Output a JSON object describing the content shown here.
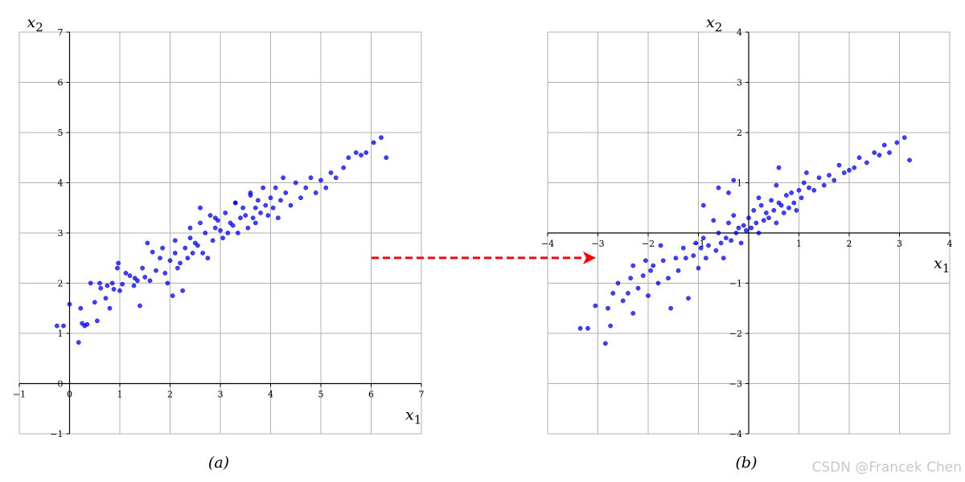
{
  "chart_data": [
    {
      "type": "scatter",
      "xlabel": "x",
      "xlabel_sub": "1",
      "ylabel": "x",
      "ylabel_sub": "2",
      "xlim": [
        -1,
        7
      ],
      "ylim": [
        -1,
        7
      ],
      "xticks": [
        -1,
        0,
        1,
        2,
        3,
        4,
        5,
        6,
        7
      ],
      "yticks": [
        -1,
        0,
        1,
        2,
        3,
        4,
        5,
        6,
        7
      ],
      "grid": true,
      "spines_through_origin": true,
      "caption": "(a)",
      "marker_color": "#0000ff",
      "series": [
        {
          "x": [
            -0.25,
            -0.12,
            0.0,
            0.18,
            0.22,
            0.25,
            0.3,
            0.35,
            0.42,
            0.5,
            0.55,
            0.6,
            0.62,
            0.72,
            0.8,
            0.85,
            0.88,
            0.95,
            0.97,
            1.05,
            1.12,
            1.2,
            1.28,
            1.35,
            1.4,
            1.45,
            1.5,
            1.55,
            1.6,
            1.65,
            1.72,
            1.8,
            1.85,
            1.9,
            1.95,
            2.0,
            2.05,
            2.1,
            2.15,
            2.2,
            2.25,
            2.3,
            2.35,
            2.4,
            2.45,
            2.5,
            2.55,
            2.6,
            2.65,
            2.7,
            2.75,
            2.8,
            2.85,
            2.9,
            2.95,
            3.0,
            3.05,
            3.1,
            3.15,
            3.2,
            3.25,
            3.3,
            3.35,
            3.4,
            3.45,
            3.5,
            3.55,
            3.6,
            3.65,
            3.7,
            3.75,
            3.8,
            3.85,
            3.9,
            3.95,
            4.0,
            4.05,
            4.1,
            4.15,
            4.2,
            4.3,
            4.4,
            4.5,
            4.6,
            4.7,
            4.8,
            4.9,
            5.0,
            5.1,
            5.2,
            5.3,
            5.45,
            5.55,
            5.7,
            5.8,
            5.9,
            6.05,
            6.2,
            6.3,
            2.1,
            2.4,
            2.9,
            3.3,
            3.7,
            4.25,
            1.0,
            1.3,
            0.75,
            2.6,
            3.6
          ],
          "y": [
            1.15,
            1.15,
            1.58,
            0.82,
            1.5,
            1.2,
            1.15,
            1.18,
            2.0,
            1.62,
            1.25,
            2.0,
            1.9,
            1.7,
            1.5,
            2.0,
            1.88,
            2.3,
            2.4,
            1.98,
            2.2,
            2.15,
            1.95,
            2.05,
            1.55,
            2.3,
            2.12,
            2.8,
            2.05,
            2.62,
            2.25,
            2.5,
            2.7,
            2.2,
            2.0,
            2.45,
            1.75,
            2.6,
            2.3,
            2.4,
            1.85,
            2.7,
            2.5,
            2.9,
            2.6,
            2.8,
            2.75,
            3.2,
            2.6,
            3.0,
            2.5,
            3.35,
            2.85,
            3.1,
            3.25,
            3.05,
            2.9,
            3.4,
            3.0,
            3.2,
            3.15,
            3.6,
            3.0,
            3.3,
            3.5,
            3.35,
            3.1,
            3.75,
            3.3,
            3.5,
            3.65,
            3.4,
            3.9,
            3.55,
            3.35,
            3.7,
            3.5,
            3.9,
            3.3,
            3.65,
            3.8,
            3.55,
            4.0,
            3.7,
            3.9,
            4.1,
            3.8,
            4.05,
            3.9,
            4.2,
            4.1,
            4.3,
            4.5,
            4.6,
            4.55,
            4.6,
            4.8,
            4.9,
            4.5,
            2.85,
            3.1,
            3.3,
            3.6,
            3.2,
            4.1,
            1.85,
            2.1,
            1.95,
            3.5,
            3.8
          ]
        }
      ]
    },
    {
      "type": "scatter",
      "xlabel": "x",
      "xlabel_sub": "1",
      "ylabel": "x",
      "ylabel_sub": "2",
      "xlim": [
        -4,
        4
      ],
      "ylim": [
        -4,
        4
      ],
      "xticks": [
        -4,
        -3,
        -2,
        -1,
        0,
        1,
        2,
        3,
        4
      ],
      "yticks": [
        -4,
        -3,
        -2,
        -1,
        0,
        1,
        2,
        3,
        4
      ],
      "grid": true,
      "spines_through_origin": true,
      "caption": "(b)",
      "marker_color": "#0000ff",
      "series": [
        {
          "x": [
            -3.35,
            -3.2,
            -3.05,
            -2.85,
            -2.8,
            -2.75,
            -2.7,
            -2.6,
            -2.5,
            -2.4,
            -2.35,
            -2.3,
            -2.2,
            -2.1,
            -2.0,
            -1.95,
            -1.9,
            -1.8,
            -1.7,
            -1.6,
            -1.55,
            -1.45,
            -1.4,
            -1.3,
            -1.25,
            -1.2,
            -1.1,
            -1.05,
            -1.0,
            -0.95,
            -0.9,
            -0.85,
            -0.8,
            -0.7,
            -0.65,
            -0.6,
            -0.55,
            -0.5,
            -0.45,
            -0.4,
            -0.35,
            -0.3,
            -0.25,
            -0.2,
            -0.15,
            -0.1,
            -0.05,
            0.0,
            0.05,
            0.1,
            0.15,
            0.2,
            0.25,
            0.3,
            0.35,
            0.4,
            0.45,
            0.5,
            0.55,
            0.6,
            0.65,
            0.7,
            0.75,
            0.8,
            0.85,
            0.9,
            0.95,
            1.0,
            1.05,
            1.1,
            1.2,
            1.3,
            1.4,
            1.5,
            1.6,
            1.7,
            1.8,
            1.9,
            2.0,
            2.1,
            2.2,
            2.35,
            2.5,
            2.6,
            2.7,
            2.8,
            2.95,
            3.1,
            3.2,
            -0.9,
            -0.6,
            -0.3,
            0.2,
            0.55,
            1.15,
            -2.05,
            -1.75,
            -2.3,
            -0.4,
            0.6
          ],
          "y": [
            -1.9,
            -1.9,
            -1.45,
            -2.2,
            -1.5,
            -1.85,
            -1.2,
            -1.0,
            -1.35,
            -1.2,
            -0.9,
            -1.6,
            -1.1,
            -0.85,
            -1.25,
            -0.75,
            -0.65,
            -1.0,
            -0.55,
            -0.9,
            -1.5,
            -0.5,
            -0.75,
            -0.3,
            -0.5,
            -1.3,
            -0.45,
            -0.2,
            -0.7,
            -0.3,
            -0.1,
            -0.5,
            -0.25,
            0.25,
            -0.35,
            0.0,
            -0.2,
            -0.5,
            -0.1,
            0.2,
            -0.15,
            0.35,
            0.0,
            0.1,
            -0.2,
            0.15,
            0.05,
            0.3,
            0.1,
            0.45,
            0.2,
            0.0,
            0.55,
            0.25,
            0.4,
            0.3,
            0.65,
            0.45,
            0.2,
            0.6,
            0.55,
            0.4,
            0.75,
            0.5,
            0.8,
            0.6,
            0.45,
            0.85,
            0.7,
            1.0,
            0.9,
            0.85,
            1.1,
            0.95,
            1.15,
            1.05,
            1.35,
            1.2,
            1.25,
            1.3,
            1.5,
            1.4,
            1.6,
            1.55,
            1.75,
            1.6,
            1.8,
            1.9,
            1.45,
            0.55,
            0.9,
            1.05,
            0.7,
            0.95,
            1.2,
            -0.55,
            -0.25,
            -0.65,
            0.8,
            1.3
          ]
        }
      ]
    }
  ],
  "arrow": {
    "color": "#ff0000"
  },
  "watermark": "CSDN @Francek Chen"
}
